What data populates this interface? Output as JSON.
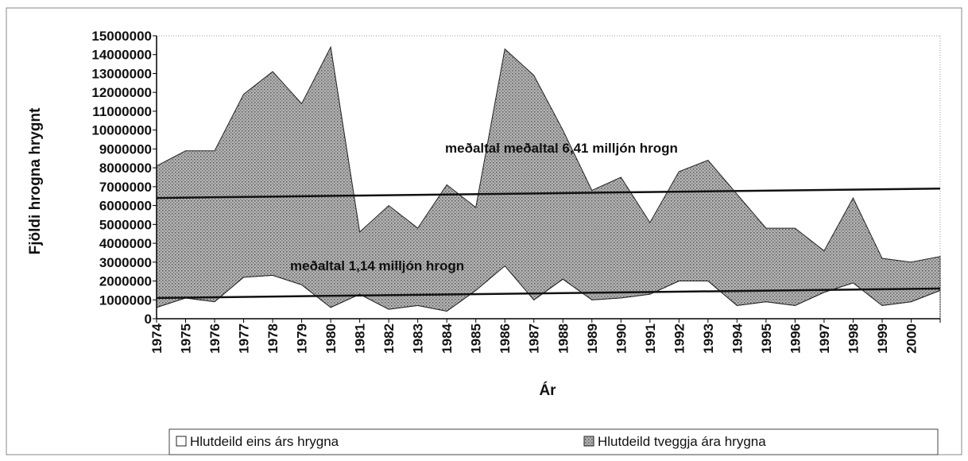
{
  "chart_data": {
    "type": "stacked_area",
    "x_label": "Ár",
    "y_label": "Fjöldi hrogna hrygnt",
    "categories": [
      "1974",
      "1975",
      "1976",
      "1977",
      "1978",
      "1979",
      "1980",
      "1981",
      "1982",
      "1983",
      "1984",
      "1985",
      "1986",
      "1987",
      "1988",
      "1989",
      "1990",
      "1991",
      "1992",
      "1993",
      "1994",
      "1995",
      "1996",
      "1997",
      "1998",
      "1999",
      "2000",
      null
    ],
    "series": [
      {
        "name": "Hlutdeild eins árs hrygna",
        "color": "#ffffff",
        "values": [
          600000,
          1100000,
          900000,
          2200000,
          2300000,
          1800000,
          600000,
          1300000,
          500000,
          700000,
          400000,
          1500000,
          2800000,
          1000000,
          2100000,
          1000000,
          1100000,
          1300000,
          2000000,
          2000000,
          700000,
          900000,
          700000,
          1400000,
          1900000,
          700000,
          900000,
          1500000
        ]
      },
      {
        "name": "Hlutdeild tveggja ára hrygna",
        "color": "#b4b4b4",
        "values": [
          7500000,
          7800000,
          8000000,
          9700000,
          10800000,
          9600000,
          13800000,
          3300000,
          5500000,
          4100000,
          6700000,
          4400000,
          11500000,
          11900000,
          7900000,
          5800000,
          6400000,
          3800000,
          5800000,
          6400000,
          5900000,
          3900000,
          4100000,
          2200000,
          4500000,
          2500000,
          2100000,
          1800000
        ]
      }
    ],
    "trendlines": [
      {
        "label": "meðaltal meðaltal 6,41 milljón hrogn",
        "start": 6400000,
        "end": 6900000
      },
      {
        "label": "meðaltal 1,14 milljón hrogn",
        "start": 1100000,
        "end": 1600000
      }
    ],
    "ylim": [
      0,
      15000000
    ],
    "yticks": [
      0,
      1000000,
      2000000,
      3000000,
      4000000,
      5000000,
      6000000,
      7000000,
      8000000,
      9000000,
      10000000,
      11000000,
      12000000,
      13000000,
      14000000,
      15000000
    ],
    "legend": "bottom"
  }
}
